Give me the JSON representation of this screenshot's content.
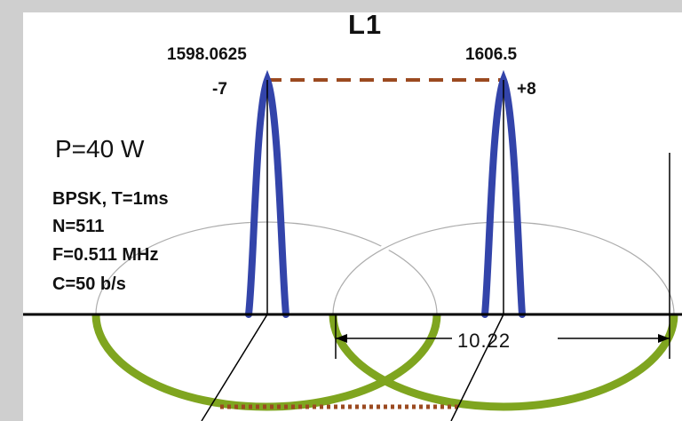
{
  "diagram": {
    "title": "L1",
    "carrier_left": {
      "frequency": "1598.0625",
      "channel": "-7"
    },
    "carrier_right": {
      "frequency": "1606.5",
      "channel": "+8"
    },
    "power": "P=40 W",
    "parameters": [
      "BPSK, T=1ms",
      "N=511",
      "F=0.511 MHz",
      "C=50 b/s"
    ],
    "bandwidth": "10.22",
    "colors": {
      "spectrum": "#3344aa",
      "ellipse": "#7fa51f",
      "dashed_line": "#9b4a20",
      "axis": "#000000"
    }
  }
}
